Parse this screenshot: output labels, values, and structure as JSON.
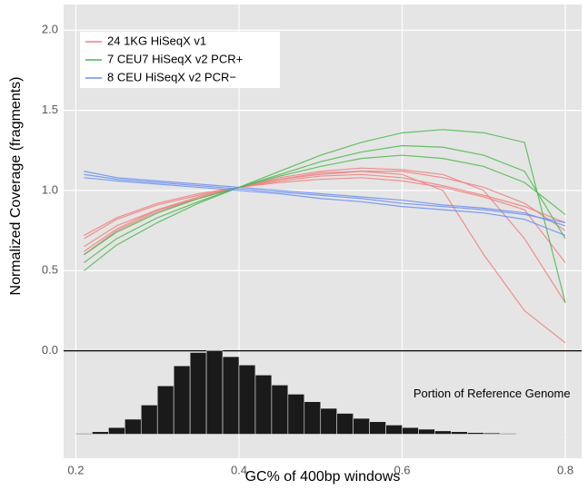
{
  "chart_data": {
    "type": "line",
    "xlabel": "GC% of 400bp windows",
    "ylabel": "Normalized Coverage (fragments)",
    "xlim": [
      0.185,
      0.82
    ],
    "ylim": [
      -0.67,
      2.16
    ],
    "xticks": [
      0.2,
      0.4,
      0.6,
      0.8
    ],
    "yticks": [
      {
        "value": 0,
        "label": "0.0"
      },
      0.5,
      {
        "value": 1,
        "label": "1.0"
      },
      1.5,
      {
        "value": 2,
        "label": "2.0"
      }
    ],
    "grid": true,
    "hline": 0,
    "legend": "top-left",
    "x": [
      0.21,
      0.25,
      0.3,
      0.35,
      0.4,
      0.45,
      0.5,
      0.55,
      0.6,
      0.65,
      0.7,
      0.75,
      0.8
    ],
    "groups": [
      {
        "name": "24 1KG HiSeqX v1",
        "color": "#f08080",
        "lines": [
          [
            0.65,
            0.78,
            0.88,
            0.95,
            1.02,
            1.07,
            1.1,
            1.12,
            1.12,
            1.08,
            1.02,
            0.92,
            0.75
          ],
          [
            0.7,
            0.82,
            0.91,
            0.97,
            1.02,
            1.06,
            1.09,
            1.1,
            1.08,
            1.03,
            0.97,
            0.9,
            0.8
          ],
          [
            0.6,
            0.75,
            0.87,
            0.95,
            1.02,
            1.08,
            1.12,
            1.14,
            1.13,
            1.1,
            1.0,
            0.7,
            0.3
          ],
          [
            0.62,
            0.76,
            0.88,
            0.96,
            1.02,
            1.07,
            1.11,
            1.12,
            1.1,
            1.0,
            0.6,
            0.25,
            0.05
          ],
          [
            0.72,
            0.83,
            0.92,
            0.98,
            1.02,
            1.05,
            1.07,
            1.08,
            1.06,
            1.02,
            0.96,
            0.88,
            0.55
          ]
        ]
      },
      {
        "name": "7 CEU7 HiSeqX v2 PCR+",
        "color": "#4cb84c",
        "lines": [
          [
            0.55,
            0.7,
            0.83,
            0.93,
            1.02,
            1.1,
            1.18,
            1.24,
            1.28,
            1.27,
            1.22,
            1.12,
            0.7
          ],
          [
            0.5,
            0.66,
            0.8,
            0.92,
            1.02,
            1.12,
            1.22,
            1.3,
            1.36,
            1.38,
            1.36,
            1.3,
            0.3
          ],
          [
            0.6,
            0.74,
            0.86,
            0.95,
            1.02,
            1.09,
            1.15,
            1.2,
            1.22,
            1.2,
            1.15,
            1.05,
            0.85
          ]
        ]
      },
      {
        "name": "8 CEU HiSeqX v2 PCR−",
        "color": "#6a8ff0",
        "lines": [
          [
            1.1,
            1.07,
            1.05,
            1.03,
            1.01,
            0.99,
            0.97,
            0.95,
            0.92,
            0.9,
            0.88,
            0.85,
            0.8
          ],
          [
            1.08,
            1.06,
            1.04,
            1.02,
            1.0,
            0.98,
            0.95,
            0.93,
            0.9,
            0.88,
            0.86,
            0.82,
            0.72
          ],
          [
            1.12,
            1.08,
            1.06,
            1.04,
            1.02,
            1.0,
            0.98,
            0.96,
            0.94,
            0.91,
            0.89,
            0.86,
            0.78
          ]
        ]
      }
    ],
    "histogram": {
      "annotation": "Portion of Reference Genome",
      "color": "#1a1a1a",
      "bins": [
        0.2,
        0.22,
        0.24,
        0.26,
        0.28,
        0.3,
        0.32,
        0.34,
        0.36,
        0.38,
        0.4,
        0.42,
        0.44,
        0.46,
        0.48,
        0.5,
        0.52,
        0.54,
        0.56,
        0.58,
        0.6,
        0.62,
        0.64,
        0.66,
        0.68,
        0.7,
        0.72,
        0.74,
        0.76,
        0.78,
        0.8
      ],
      "counts": [
        0.01,
        0.03,
        0.08,
        0.18,
        0.35,
        0.58,
        0.82,
        0.98,
        1.0,
        0.93,
        0.83,
        0.71,
        0.59,
        0.48,
        0.39,
        0.31,
        0.25,
        0.19,
        0.15,
        0.11,
        0.08,
        0.06,
        0.04,
        0.03,
        0.02,
        0.015,
        0.01,
        0.006,
        0.004,
        0.002
      ]
    }
  }
}
